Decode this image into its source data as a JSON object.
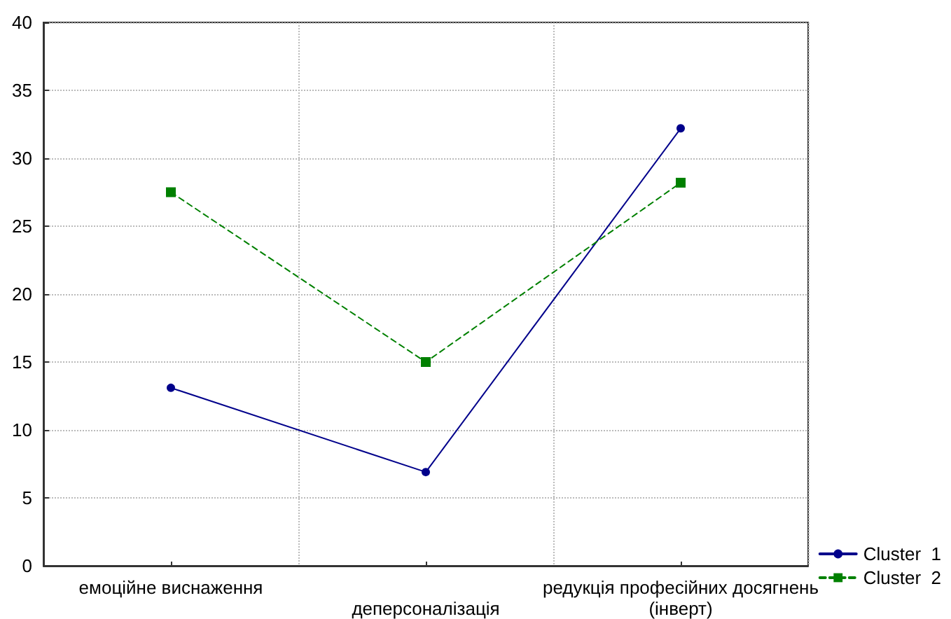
{
  "chart_data": {
    "type": "line",
    "categories": [
      "емоційне виснаження",
      "деперсоналізація",
      "редукція професійних досягнень\n(інверт)"
    ],
    "series": [
      {
        "name": "Cluster  1",
        "color": "#00008b",
        "values": [
          13.1,
          6.9,
          32.2
        ],
        "marker": "circle",
        "line_style": "solid"
      },
      {
        "name": "Cluster  2",
        "color": "#008000",
        "values": [
          27.5,
          15.0,
          28.2
        ],
        "marker": "square",
        "line_style": "dashed"
      }
    ],
    "ylim": [
      0,
      40
    ],
    "yticks": [
      0,
      5,
      10,
      15,
      20,
      25,
      30,
      35,
      40
    ],
    "grid": true,
    "legend": "bottom right"
  }
}
